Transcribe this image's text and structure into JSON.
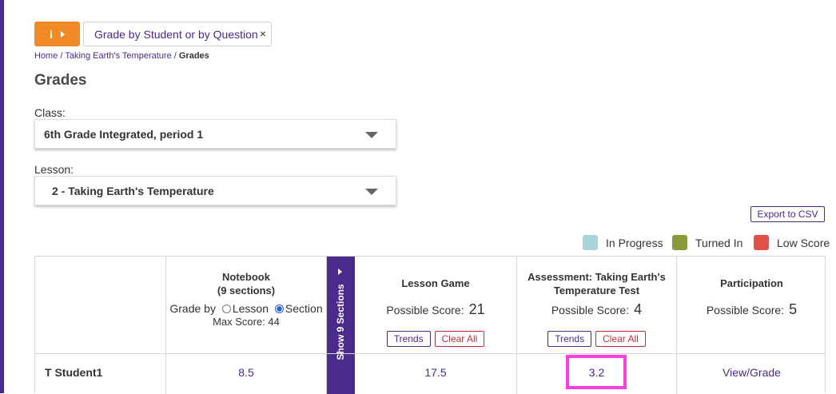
{
  "hint": {
    "label": "Grade by Student or by Question",
    "close": "×"
  },
  "breadcrumb": {
    "home": "Home",
    "sep1": " / ",
    "lesson": "Taking Earth's Temperature",
    "sep2": " / ",
    "current": "Grades"
  },
  "page_title": "Grades",
  "class_field": {
    "label": "Class:",
    "value": "6th Grade Integrated, period 1"
  },
  "lesson_field": {
    "label": "Lesson:",
    "value": "2 - Taking Earth's Temperature"
  },
  "export_label": "Export to CSV",
  "legend": [
    {
      "label": "In Progress",
      "color": "#a9d4dc"
    },
    {
      "label": "Turned In",
      "color": "#8a9a3a"
    },
    {
      "label": "Low Score",
      "color": "#e05247"
    }
  ],
  "table": {
    "notebook": {
      "title_line1": "Notebook",
      "title_line2": "(9 sections)",
      "grade_by": "Grade by",
      "opt_lesson": "Lesson",
      "opt_section": "Section",
      "max_score": "Max Score: 44"
    },
    "show_sections": "Show 9 Sections",
    "lesson_game": {
      "title": "Lesson Game",
      "possible": "Possible Score:",
      "score": "21",
      "trends": "Trends",
      "clear": "Clear All"
    },
    "assessment": {
      "title_line1": "Assessment: Taking Earth's",
      "title_line2": "Temperature Test",
      "possible": "Possible Score:",
      "score": "4",
      "trends": "Trends",
      "clear": "Clear All"
    },
    "participation": {
      "title": "Participation",
      "possible": "Possible Score:",
      "score": "5"
    },
    "rows": [
      {
        "student": "T Student1",
        "notebook": "8.5",
        "lesson_game": "17.5",
        "assessment": "3.2",
        "participation": "View/Grade"
      }
    ]
  }
}
